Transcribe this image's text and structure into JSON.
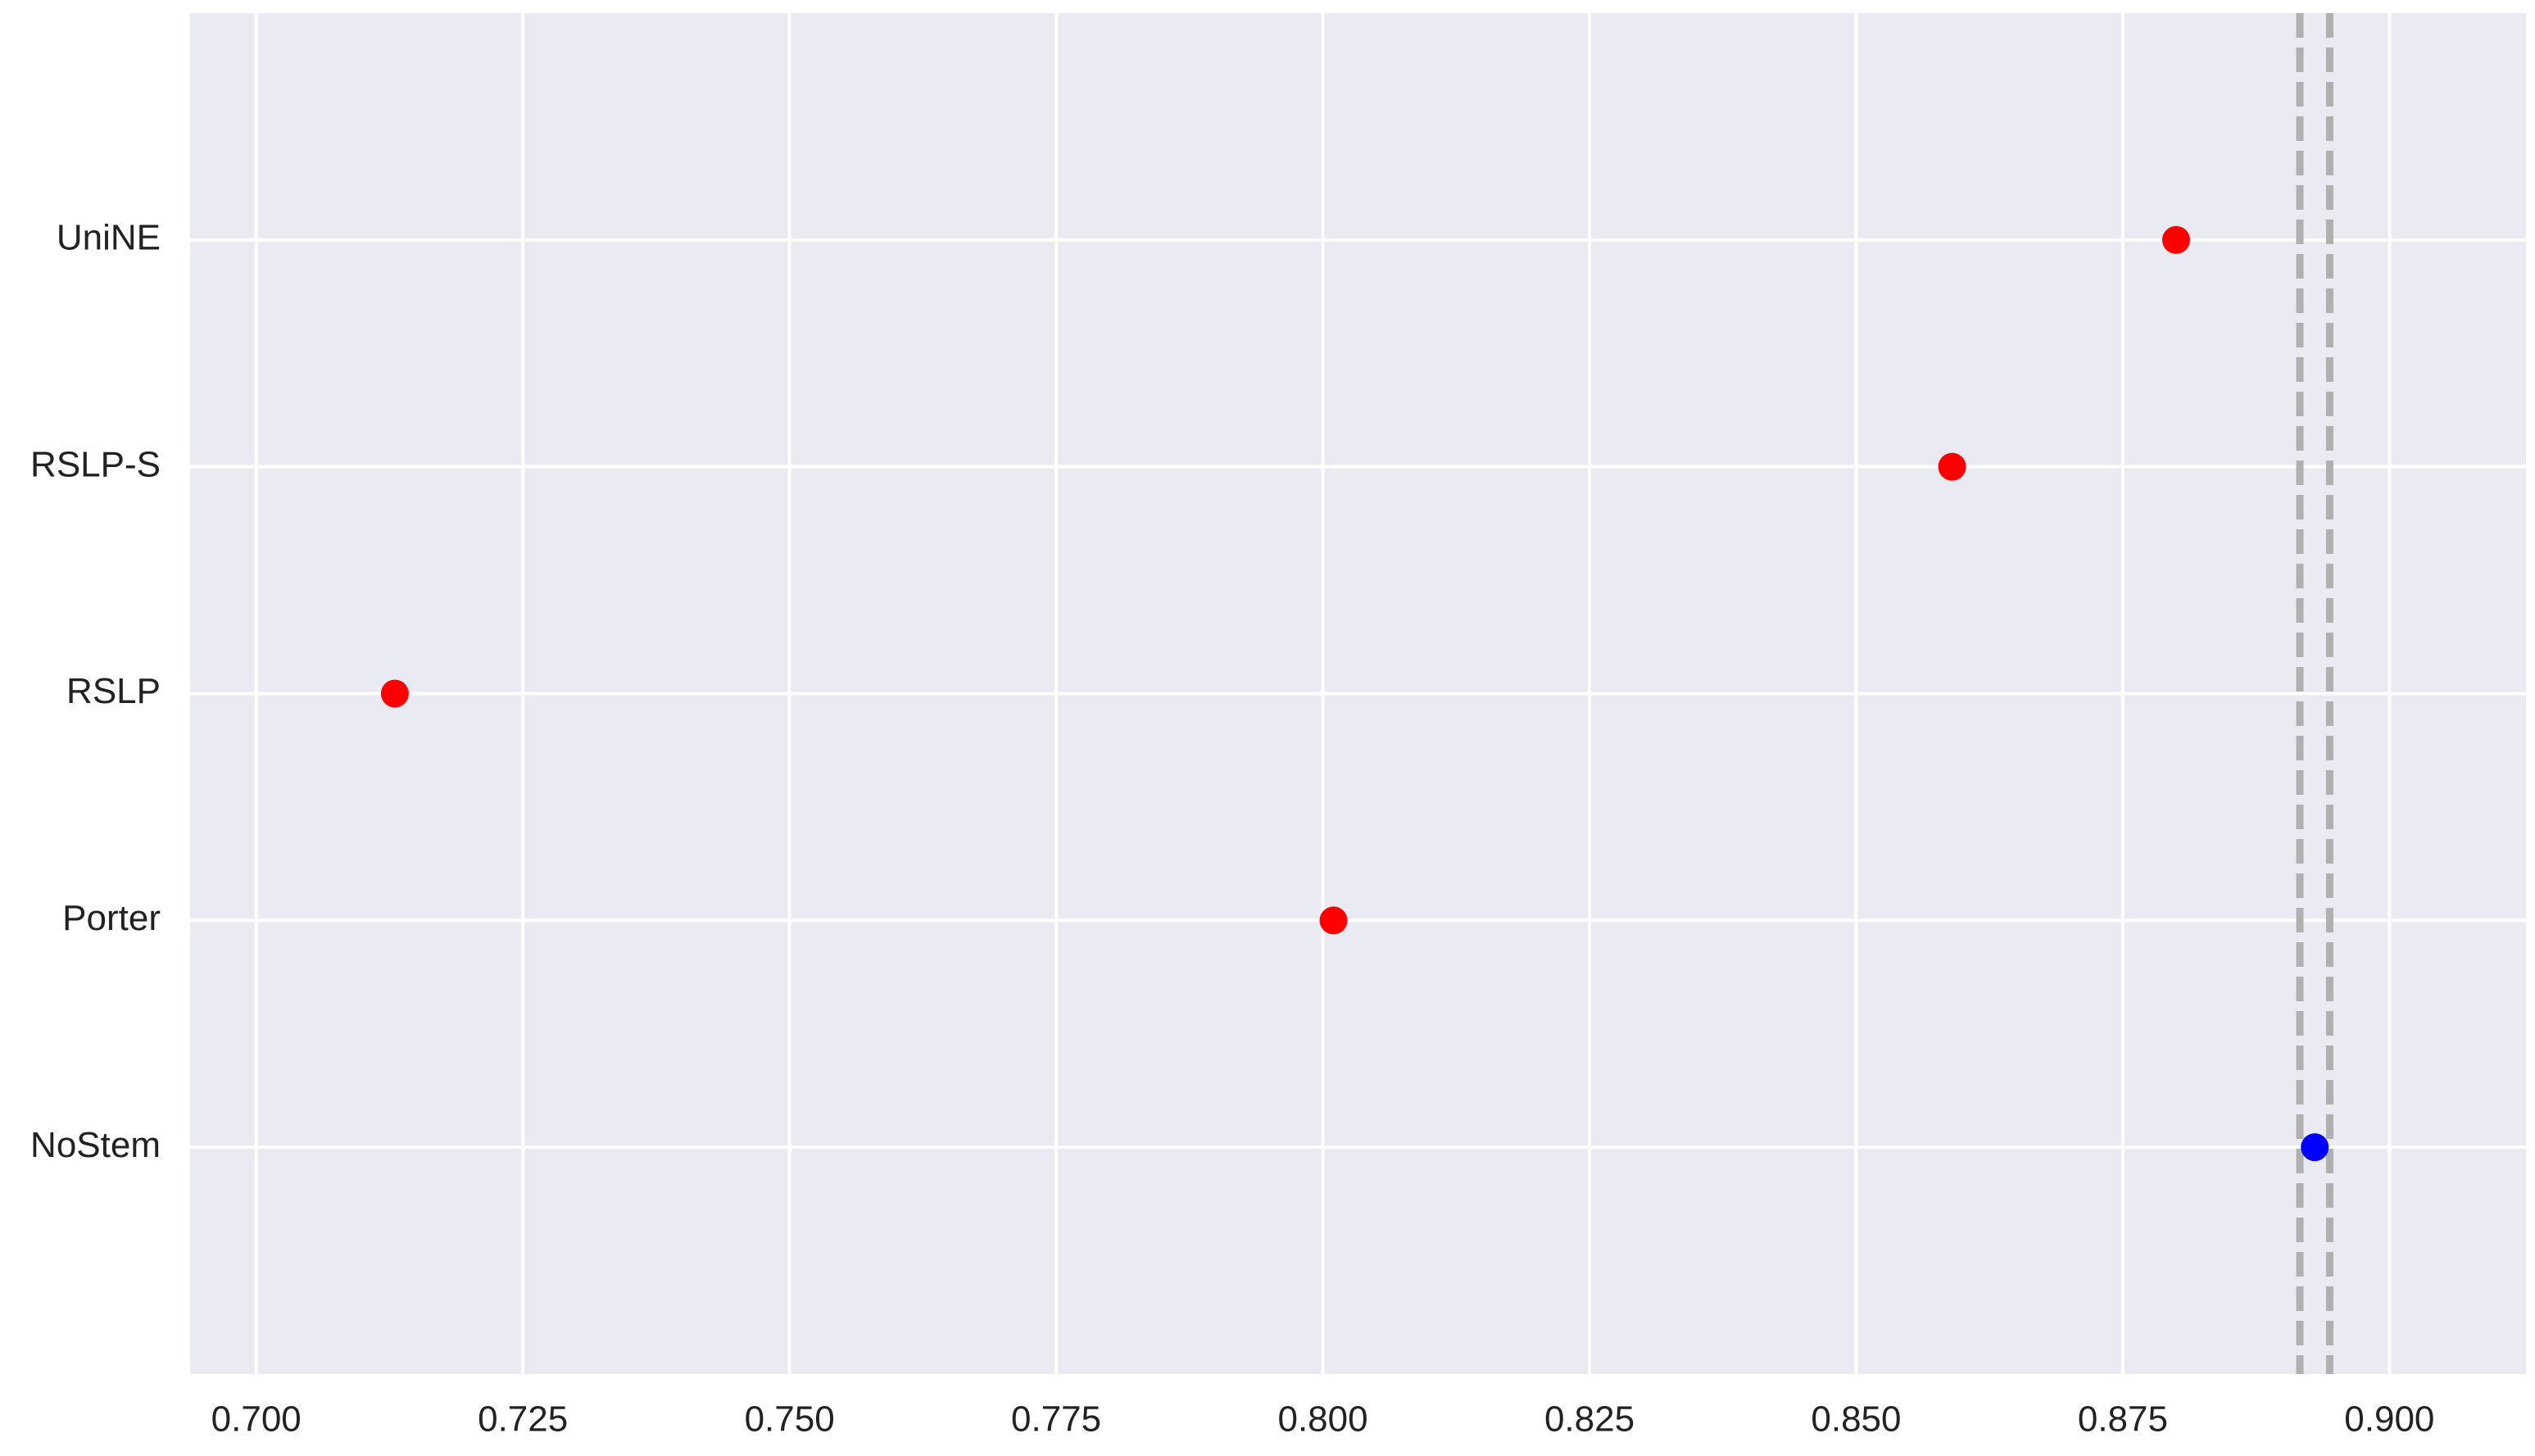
{
  "chart_data": {
    "type": "scatter",
    "categories": [
      "UniNE",
      "RSLP-S",
      "RSLP",
      "Porter",
      "NoStem"
    ],
    "values": [
      0.88,
      0.859,
      0.713,
      0.801,
      0.893
    ],
    "colors": [
      "#ff0000",
      "#ff0000",
      "#ff0000",
      "#ff0000",
      "#0000ff"
    ],
    "reference_lines": [
      0.8916,
      0.8944
    ],
    "reference_line_color": "#b0b0b0",
    "xlim": [
      0.6938,
      0.9128
    ],
    "xticks": [
      {
        "value": 0.7,
        "label": "0.700"
      },
      {
        "value": 0.725,
        "label": "0.725"
      },
      {
        "value": 0.75,
        "label": "0.750"
      },
      {
        "value": 0.775,
        "label": "0.775"
      },
      {
        "value": 0.8,
        "label": "0.800"
      },
      {
        "value": 0.825,
        "label": "0.825"
      },
      {
        "value": 0.85,
        "label": "0.850"
      },
      {
        "value": 0.875,
        "label": "0.875"
      },
      {
        "value": 0.9,
        "label": "0.900"
      }
    ],
    "grid": true
  }
}
